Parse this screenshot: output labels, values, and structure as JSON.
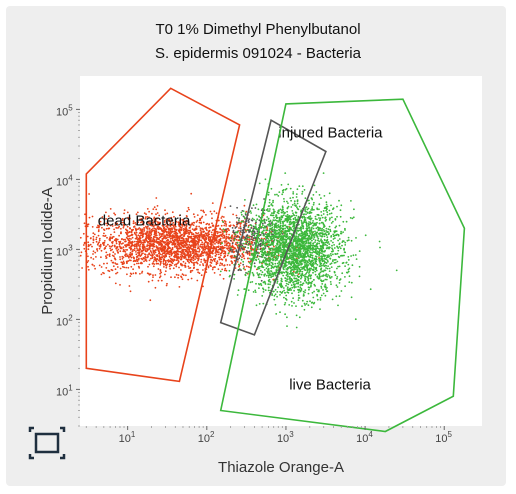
{
  "title_lines": [
    "T0 1% Dimethyl Phenylbutanol",
    "S. epidermis 091024 - Bacteria"
  ],
  "icons": {
    "corner": "fit-view-icon"
  },
  "chart_data": {
    "type": "scatter",
    "title": "T0 1% Dimethyl Phenylbutanol / S. epidermis 091024 - Bacteria",
    "xlabel": "Thiazole Orange-A",
    "ylabel": "Propidium Iodide-A",
    "x_scale": "log",
    "y_scale": "log",
    "xlim": [
      2.5,
      300000
    ],
    "ylim": [
      3,
      300000
    ],
    "x_ticks": [
      {
        "base": "10",
        "exp": "1",
        "value": 10
      },
      {
        "base": "10",
        "exp": "2",
        "value": 100
      },
      {
        "base": "10",
        "exp": "3",
        "value": 1000
      },
      {
        "base": "10",
        "exp": "4",
        "value": 10000
      },
      {
        "base": "10",
        "exp": "5",
        "value": 100000
      }
    ],
    "y_ticks": [
      {
        "base": "10",
        "exp": "1",
        "value": 10
      },
      {
        "base": "10",
        "exp": "2",
        "value": 100
      },
      {
        "base": "10",
        "exp": "3",
        "value": 1000
      },
      {
        "base": "10",
        "exp": "4",
        "value": 10000
      },
      {
        "base": "10",
        "exp": "5",
        "value": 100000
      }
    ],
    "gates": [
      {
        "label": "dead Bacteria",
        "color": "#e8431b",
        "polygon": [
          [
            3,
            12000
          ],
          [
            3,
            20
          ],
          [
            45,
            13
          ],
          [
            260,
            60000
          ],
          [
            35,
            200000
          ]
        ]
      },
      {
        "label": "injured Bacteria",
        "color": "#555555",
        "polygon": [
          [
            150,
            90
          ],
          [
            650,
            70000
          ],
          [
            3200,
            25000
          ],
          [
            400,
            60
          ]
        ]
      },
      {
        "label": "live Bacteria",
        "color": "#3cb83c",
        "polygon": [
          [
            150,
            5
          ],
          [
            1000,
            120000
          ],
          [
            30000,
            140000
          ],
          [
            180000,
            2000
          ],
          [
            130000,
            8
          ],
          [
            18000,
            2.5
          ]
        ]
      }
    ],
    "populations": [
      {
        "name": "dead Bacteria",
        "color": "#e8431b",
        "center": [
          40,
          1200
        ],
        "spread_log": [
          0.55,
          0.2
        ],
        "count": 2600
      },
      {
        "name": "injured Bacteria",
        "color": "#555555",
        "center": [
          400,
          1500
        ],
        "spread_log": [
          0.15,
          0.2
        ],
        "count": 220
      },
      {
        "name": "live Bacteria",
        "color": "#3cb83c",
        "center": [
          1300,
          1000
        ],
        "spread_log": [
          0.3,
          0.33
        ],
        "count": 2600
      }
    ],
    "legend": "none",
    "grid": false
  }
}
